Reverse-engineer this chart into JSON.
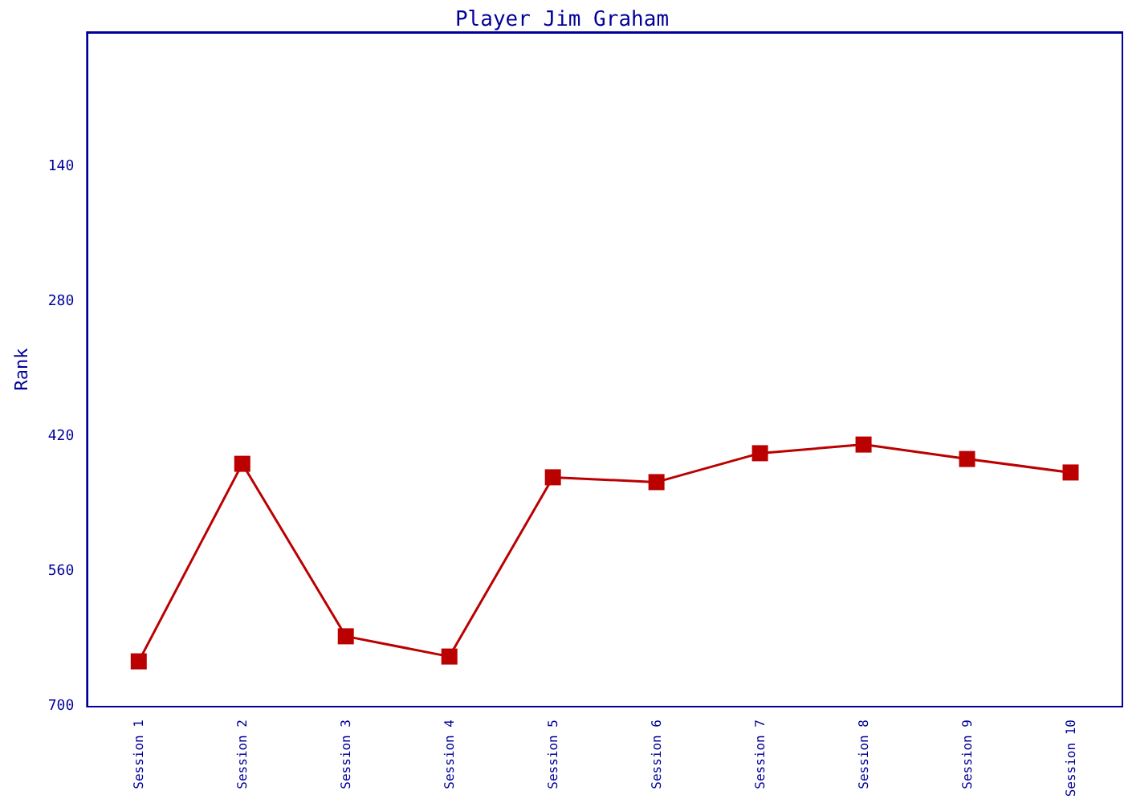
{
  "chart_data": {
    "type": "line",
    "title": "Player Jim Graham",
    "ylabel": "Rank",
    "categories": [
      "Session 1",
      "Session 2",
      "Session 3",
      "Session 4",
      "Session 5",
      "Session 6",
      "Session 7",
      "Session 8",
      "Session 9",
      "Session 10"
    ],
    "series": [
      {
        "color": "#bb0000",
        "values": [
          653,
          448,
          627,
          648,
          462,
          467,
          437,
          428,
          443,
          457
        ]
      }
    ],
    "ylim": [
      700,
      0
    ],
    "yticks": [
      140,
      280,
      420,
      560,
      700
    ],
    "grid": false,
    "marker": "square",
    "line_style": "solid"
  }
}
